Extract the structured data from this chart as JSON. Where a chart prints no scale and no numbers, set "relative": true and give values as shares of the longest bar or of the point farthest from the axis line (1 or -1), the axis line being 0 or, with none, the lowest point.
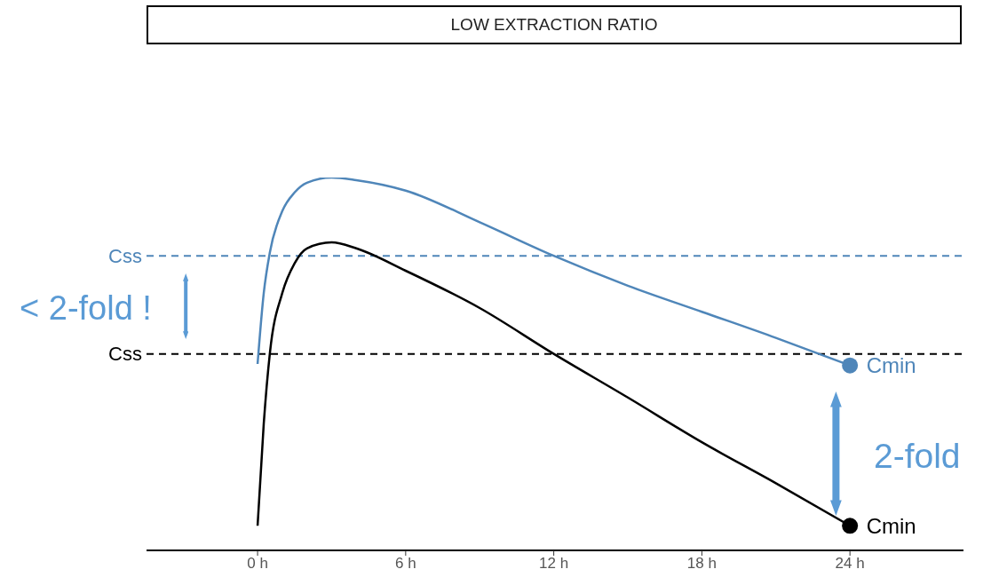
{
  "chart_data": {
    "type": "line",
    "title": "LOW EXTRACTION RATIO",
    "relative": true,
    "grid": false,
    "legend": false,
    "line_style": "solid",
    "xlim": [
      -4.5,
      28.6
    ],
    "xticks": [
      {
        "value": 0,
        "label": "0 h"
      },
      {
        "value": 6,
        "label": "6 h"
      },
      {
        "value": 12,
        "label": "12 h"
      },
      {
        "value": 18,
        "label": "18 h"
      },
      {
        "value": 24,
        "label": "24 h"
      }
    ],
    "series": [
      {
        "color": "#4f86b9",
        "x": [
          0,
          0.25,
          0.5,
          1,
          1.5,
          2,
          3,
          4,
          6,
          9,
          12,
          15,
          18,
          21,
          24
        ],
        "values": [
          0.5,
          0.69,
          0.8,
          0.91,
          0.96,
          0.986,
          1,
          0.993,
          0.965,
          0.88,
          0.79,
          0.71,
          0.64,
          0.57,
          0.496
        ]
      },
      {
        "color": "#000000",
        "x": [
          0,
          0.25,
          0.5,
          1,
          1.5,
          2,
          3,
          4,
          6,
          9,
          12,
          15,
          18,
          21,
          24
        ],
        "values": [
          0.066,
          0.34,
          0.53,
          0.69,
          0.77,
          0.81,
          0.826,
          0.81,
          0.75,
          0.65,
          0.527,
          0.41,
          0.29,
          0.18,
          0.066
        ]
      },
      {
        "type": "scatter",
        "name": "Cmin",
        "marker": "circle",
        "color": "#4f86b9",
        "x": [
          24
        ],
        "values": [
          0.496
        ]
      },
      {
        "type": "scatter",
        "name": "Cmin",
        "marker": "circle",
        "color": "#000000",
        "x": [
          24
        ],
        "values": [
          0.066
        ]
      }
    ],
    "ref_lines": [
      {
        "axis": "y",
        "value": 0.79,
        "label": "Css",
        "color": "#4f86b9",
        "line_style": "dashed"
      },
      {
        "axis": "y",
        "value": 0.527,
        "label": "Css",
        "color": "#000000",
        "line_style": "dashed"
      }
    ],
    "annotations": [
      "< 2-fold !",
      "2-fold"
    ]
  }
}
